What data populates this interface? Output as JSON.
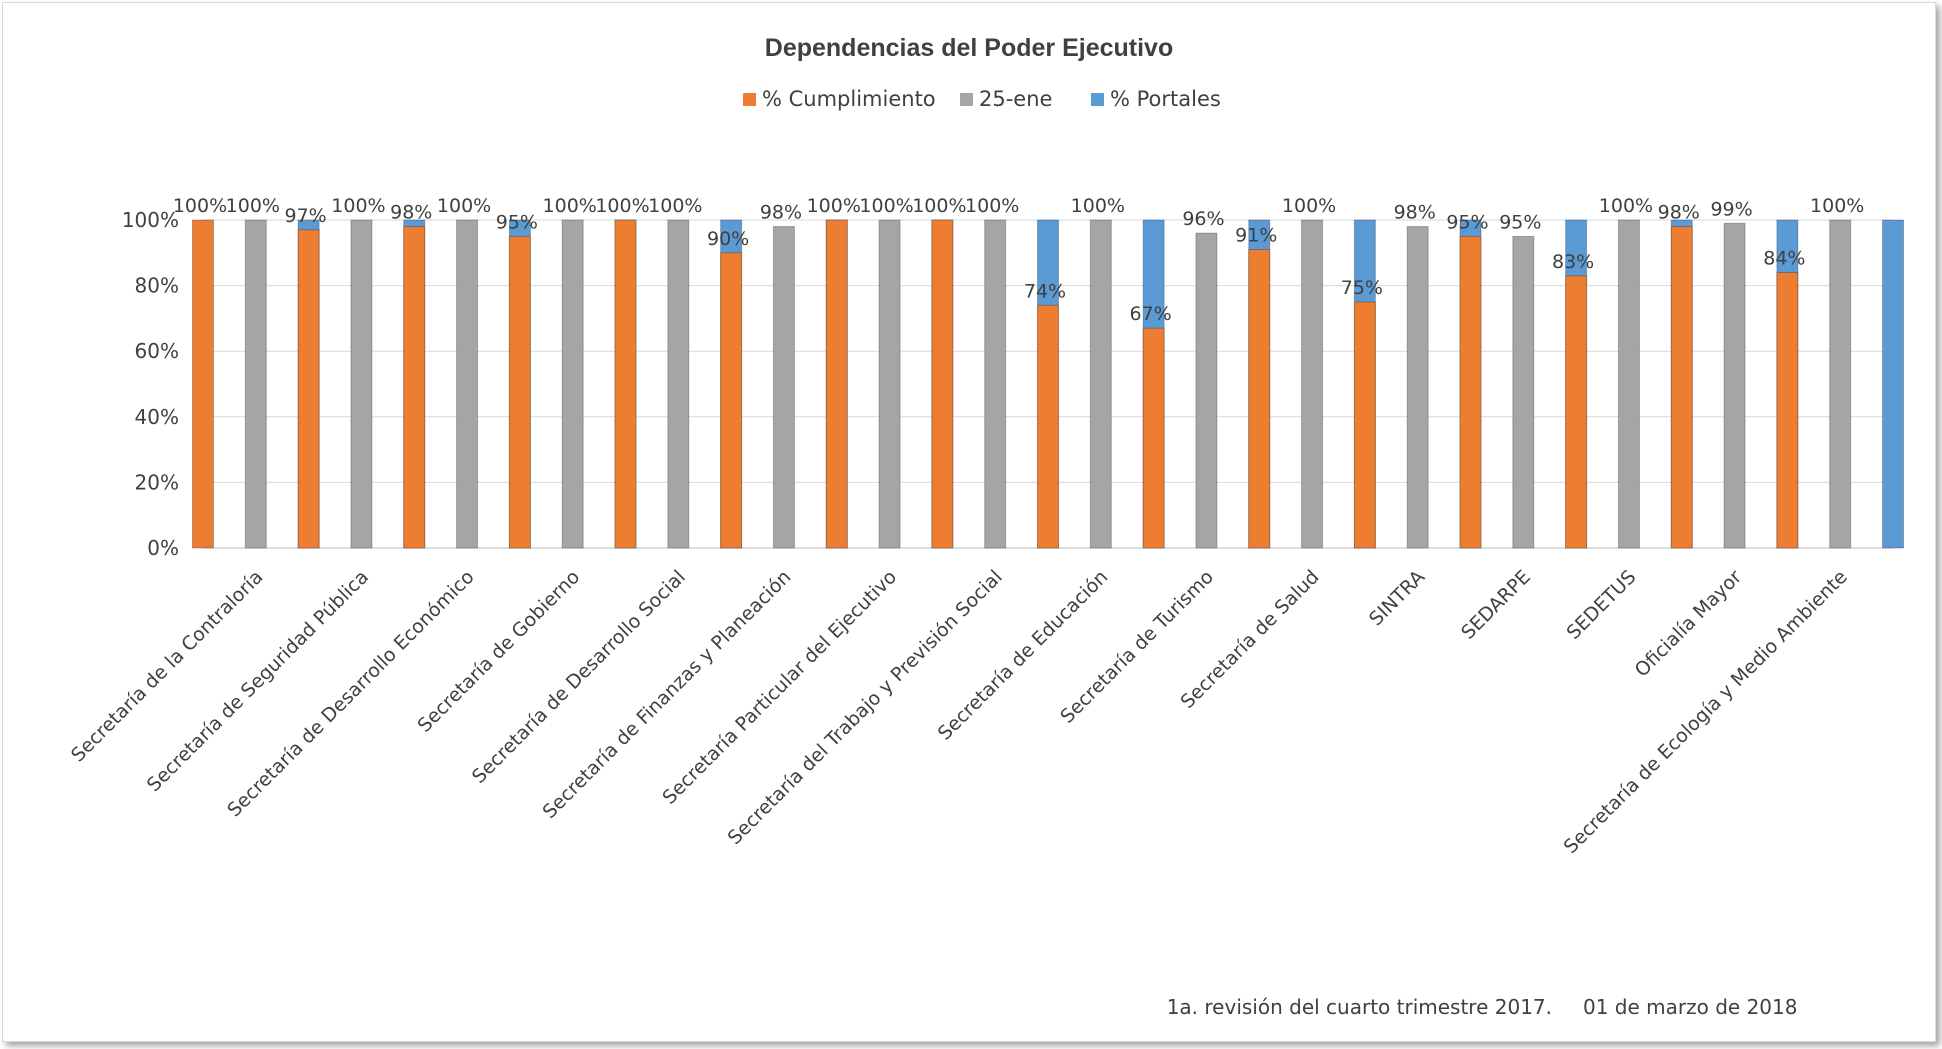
{
  "chart_data": {
    "type": "bar",
    "title": "Dependencias del Poder Ejecutivo",
    "xlabel": "",
    "ylabel": "",
    "ylim": [
      0,
      1
    ],
    "yticks": [
      "0%",
      "20%",
      "40%",
      "60%",
      "80%",
      "100%"
    ],
    "legend_position": "top",
    "grid": true,
    "categories": [
      "Secretaría de la Contraloría",
      "Secretaría de Seguridad Pública",
      "Secretaría de Desarrollo Económico",
      "Secretaría de Gobierno",
      "Secretaría de Desarrollo Social",
      "Secretaría de Finanzas y Planeación",
      "Secretaría Particular del Ejecutivo",
      "Secretaría del Trabajo y Previsión Social",
      "Secretaría de Educación",
      "Secretaría de Turismo",
      "Secretaría de Salud",
      "SINTRA",
      "SEDARPE",
      "SEDETUS",
      "Oficialía Mayor",
      "Secretaría de Ecología y Medio Ambiente"
    ],
    "series": [
      {
        "name": "% Cumplimiento",
        "color": "#ed7d31",
        "values": [
          1.0,
          0.97,
          0.98,
          0.95,
          1.0,
          0.9,
          1.0,
          1.0,
          0.74,
          0.67,
          0.91,
          0.75,
          0.95,
          0.83,
          0.98,
          0.84
        ],
        "labels": [
          "100%",
          "97%",
          "98%",
          "95%",
          "100%",
          "90%",
          "100%",
          "100%",
          "74%",
          "67%",
          "91%",
          "75%",
          "95%",
          "83%",
          "98%",
          "84%"
        ]
      },
      {
        "name": "25-ene",
        "color": "#a5a5a5",
        "values": [
          1.0,
          1.0,
          1.0,
          1.0,
          1.0,
          0.98,
          1.0,
          1.0,
          1.0,
          0.96,
          1.0,
          0.98,
          0.95,
          1.0,
          0.99,
          1.0
        ],
        "labels": [
          "100%",
          "100%",
          "100%",
          "100%",
          "100%",
          "98%",
          "100%",
          "100%",
          "100%",
          "96%",
          "100%",
          "98%",
          "95%",
          "100%",
          "99%",
          "100%"
        ]
      },
      {
        "name": "% Portales",
        "color": "#5b9bd5",
        "values": [
          1.0,
          1.0,
          1.0,
          1.0,
          1.0,
          1.0,
          1.0,
          1.0,
          1.0,
          1.0,
          1.0,
          1.0,
          1.0,
          1.0,
          1.0,
          1.0
        ]
      }
    ]
  },
  "footer": {
    "revision": "1a. revisión del cuarto trimestre 2017.",
    "date": "01 de marzo de 2018"
  }
}
